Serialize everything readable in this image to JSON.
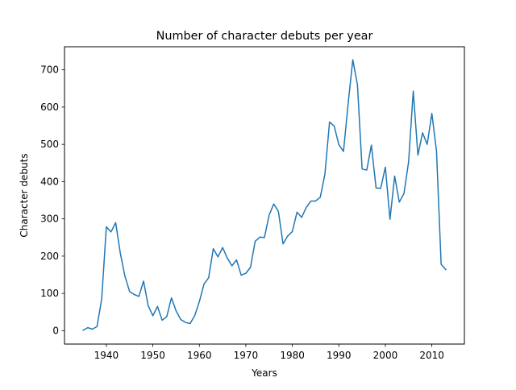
{
  "chart_data": {
    "type": "line",
    "title": "Number of character debuts per year",
    "xlabel": "Years",
    "ylabel": "Character debuts",
    "xlim": [
      1931,
      2017
    ],
    "ylim": [
      -36,
      762
    ],
    "xticks": [
      1940,
      1950,
      1960,
      1970,
      1980,
      1990,
      2000,
      2010
    ],
    "yticks": [
      0,
      100,
      200,
      300,
      400,
      500,
      600,
      700
    ],
    "grid": false,
    "legend": "none",
    "series": [
      {
        "color": "#1f77b4",
        "x": [
          1935,
          1936,
          1937,
          1938,
          1939,
          1940,
          1941,
          1942,
          1943,
          1944,
          1945,
          1946,
          1947,
          1948,
          1949,
          1950,
          1951,
          1952,
          1953,
          1954,
          1955,
          1956,
          1957,
          1958,
          1959,
          1960,
          1961,
          1962,
          1963,
          1964,
          1965,
          1966,
          1967,
          1968,
          1969,
          1970,
          1971,
          1972,
          1973,
          1974,
          1975,
          1976,
          1977,
          1978,
          1979,
          1980,
          1981,
          1982,
          1983,
          1984,
          1985,
          1986,
          1987,
          1988,
          1989,
          1990,
          1991,
          1992,
          1993,
          1994,
          1995,
          1996,
          1997,
          1998,
          1999,
          2000,
          2001,
          2002,
          2003,
          2004,
          2005,
          2006,
          2007,
          2008,
          2009,
          2010,
          2011,
          2012,
          2013
        ],
        "y": [
          1,
          8,
          4,
          11,
          85,
          279,
          265,
          290,
          208,
          146,
          105,
          97,
          92,
          133,
          67,
          40,
          65,
          28,
          38,
          88,
          53,
          30,
          22,
          19,
          40,
          78,
          125,
          142,
          220,
          198,
          223,
          195,
          174,
          190,
          149,
          154,
          170,
          240,
          251,
          250,
          310,
          340,
          320,
          233,
          254,
          266,
          318,
          304,
          331,
          348,
          348,
          358,
          420,
          560,
          549,
          499,
          481,
          610,
          727,
          660,
          434,
          431,
          498,
          383,
          382,
          439,
          299,
          415,
          345,
          368,
          453,
          643,
          471,
          531,
          500,
          583,
          482,
          178,
          164
        ]
      }
    ]
  }
}
